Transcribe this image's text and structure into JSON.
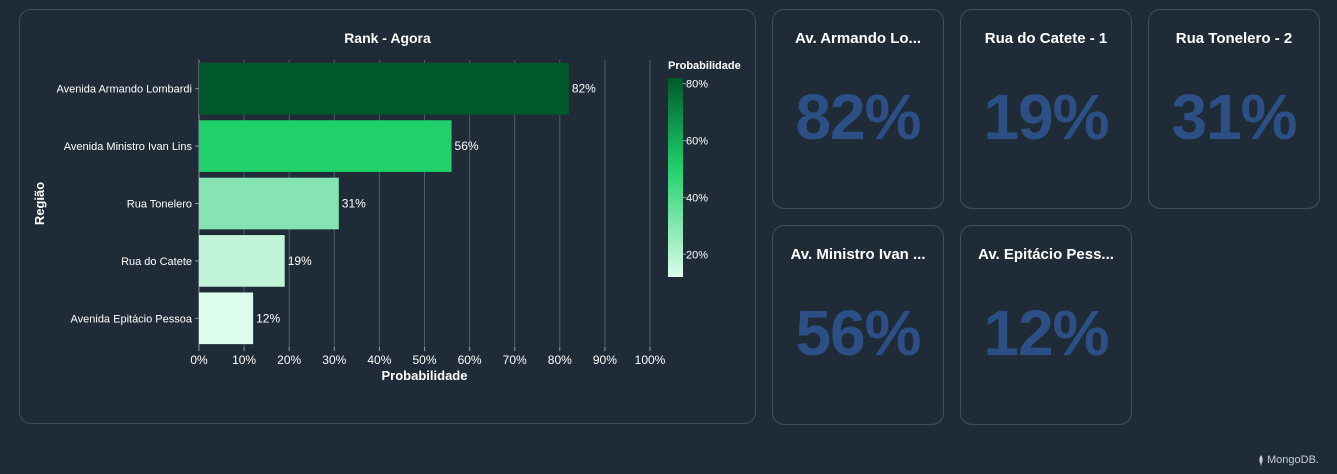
{
  "chart": {
    "title": "Rank - Agora",
    "legend_title": "Probabilidade"
  },
  "chart_data": {
    "type": "bar",
    "orientation": "horizontal",
    "title": "Rank - Agora",
    "xlabel": "Probabilidade",
    "ylabel": "Região",
    "categories": [
      "Avenida Armando Lombardi",
      "Avenida Ministro Ivan Lins",
      "Rua Tonelero",
      "Rua do Catete",
      "Avenida Epitácio Pessoa"
    ],
    "values": [
      0.82,
      0.56,
      0.31,
      0.19,
      0.12
    ],
    "data_labels": [
      "82%",
      "56%",
      "31%",
      "19%",
      "12%"
    ],
    "colors": [
      "#00592b",
      "#20d06b",
      "#86e3b2",
      "#c2f5d8",
      "#dcfdeb"
    ],
    "xlim": [
      0,
      1
    ],
    "x_ticks": [
      "0%",
      "10%",
      "20%",
      "30%",
      "40%",
      "50%",
      "60%",
      "70%",
      "80%",
      "90%",
      "100%"
    ],
    "grid": true,
    "legend": {
      "title": "Probabilidade",
      "type": "color-gradient",
      "placement": "right",
      "range": [
        0.12,
        0.82
      ],
      "ticks": [
        "80%",
        "60%",
        "40%",
        "20%"
      ],
      "tick_values": [
        0.8,
        0.6,
        0.4,
        0.2
      ],
      "colors": [
        "#dcfdeb",
        "#00592b"
      ]
    }
  },
  "kpis": [
    {
      "title": "Av. Armando Lo...",
      "value": "82%"
    },
    {
      "title": "Rua do Catete - 1",
      "value": "19%"
    },
    {
      "title": "Rua Tonelero - 2",
      "value": "31%"
    },
    {
      "title": "Av. Ministro Ivan ...",
      "value": "56%"
    },
    {
      "title": "Av. Epitácio Pess...",
      "value": "12%"
    }
  ],
  "footer": {
    "brand": "MongoDB."
  },
  "colors": {
    "background": "#1f2c38",
    "card_border": "#3d4f5e",
    "kpi_value": "#2c4f86"
  }
}
